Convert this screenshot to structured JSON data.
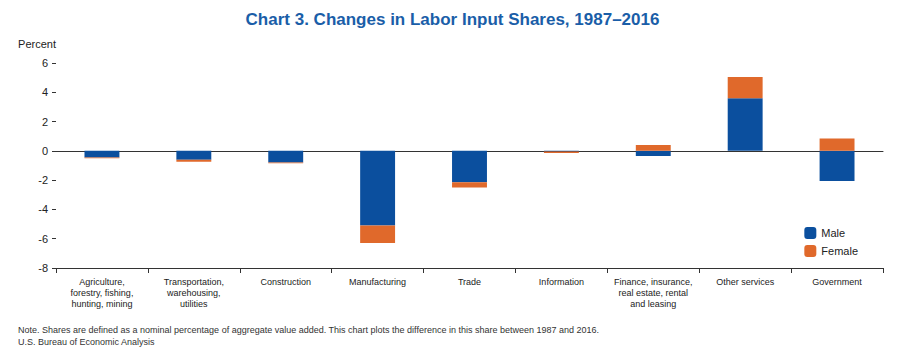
{
  "chart_data": {
    "type": "bar",
    "title": "Chart 3. Changes in Labor Input Shares, 1987–2016",
    "y_label": "Percent",
    "categories": [
      "Agriculture,\nforestry, fishing,\nhunting, mining",
      "Transportation,\nwarehousing,\nutilities",
      "Construction",
      "Manufacturing",
      "Trade",
      "Information",
      "Finance, insurance,\nreal estate, rental\nand leasing",
      "Other services",
      "Government"
    ],
    "series": [
      {
        "name": "Male",
        "color": "#0b4f9e",
        "values": [
          -0.45,
          -0.6,
          -0.8,
          -5.1,
          -2.15,
          -0.05,
          -0.35,
          3.6,
          -2.05
        ]
      },
      {
        "name": "Female",
        "color": "#e0692b",
        "values": [
          -0.05,
          -0.15,
          -0.05,
          -1.2,
          -0.35,
          -0.1,
          0.4,
          1.45,
          0.85
        ]
      }
    ],
    "ylim": [
      -8,
      6
    ],
    "yticks": [
      -8,
      -6,
      -4,
      -2,
      0,
      2,
      4,
      6
    ],
    "grid": false,
    "stacked": true,
    "legend": "lower right",
    "note": "Note. Shares are defined as a nominal percentage of aggregate value added. This chart plots the difference in this share between 1987 and 2016.",
    "source": "U.S. Bureau of Economic Analysis"
  }
}
